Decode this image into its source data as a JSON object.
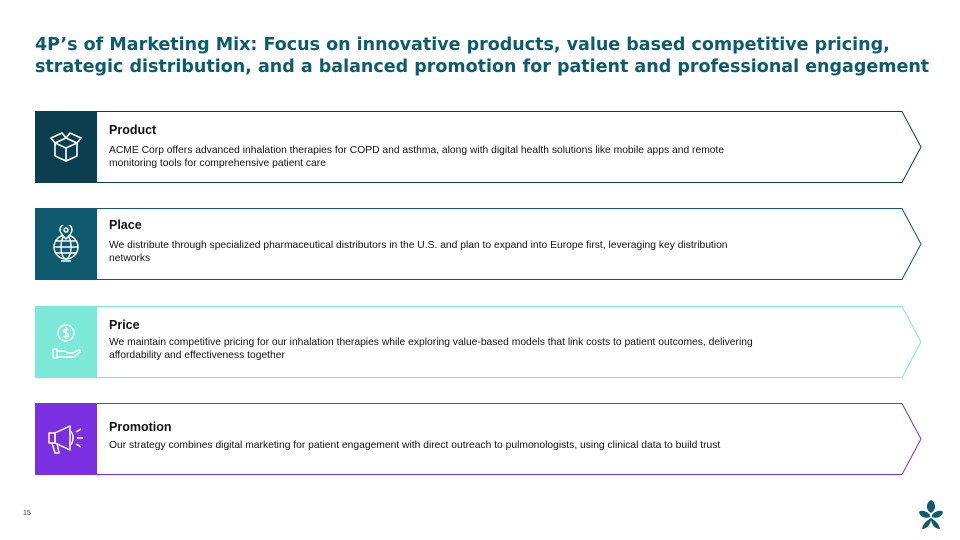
{
  "title": {
    "line1": "4P’s of Marketing Mix: Focus on innovative products, value based competitive pricing,",
    "line2": "strategic distribution, and a balanced promotion for patient and professional engagement"
  },
  "rows": [
    {
      "heading": "Product",
      "line1": "ACME Corp offers advanced inhalation therapies for COPD and asthma, along with digital health solutions like mobile apps and remote",
      "line2": "monitoring tools for comprehensive patient care",
      "icon": "open-box-icon",
      "color": "#0b3f4f"
    },
    {
      "heading": "Place",
      "line1": "We distribute through specialized pharmaceutical distributors in the U.S. and plan to expand into Europe first, leveraging key distribution",
      "line2": "networks",
      "icon": "globe-pin-icon",
      "color": "#0f5a6e"
    },
    {
      "heading": "Price",
      "line1": "We maintain competitive pricing for our inhalation therapies while exploring value-based models that link costs to patient outcomes, delivering",
      "line2": "affordability and effectiveness together",
      "icon": "dollar-hand-icon",
      "color": "#7be8d8"
    },
    {
      "heading": "Promotion",
      "line1": "Our strategy combines digital marketing for patient engagement with direct outreach to pulmonologists, using clinical data to build trust",
      "line2": "",
      "icon": "megaphone-icon",
      "color": "#7a2fe0"
    }
  ],
  "page_number": "15",
  "logo_icon": "leaf-logo-icon"
}
